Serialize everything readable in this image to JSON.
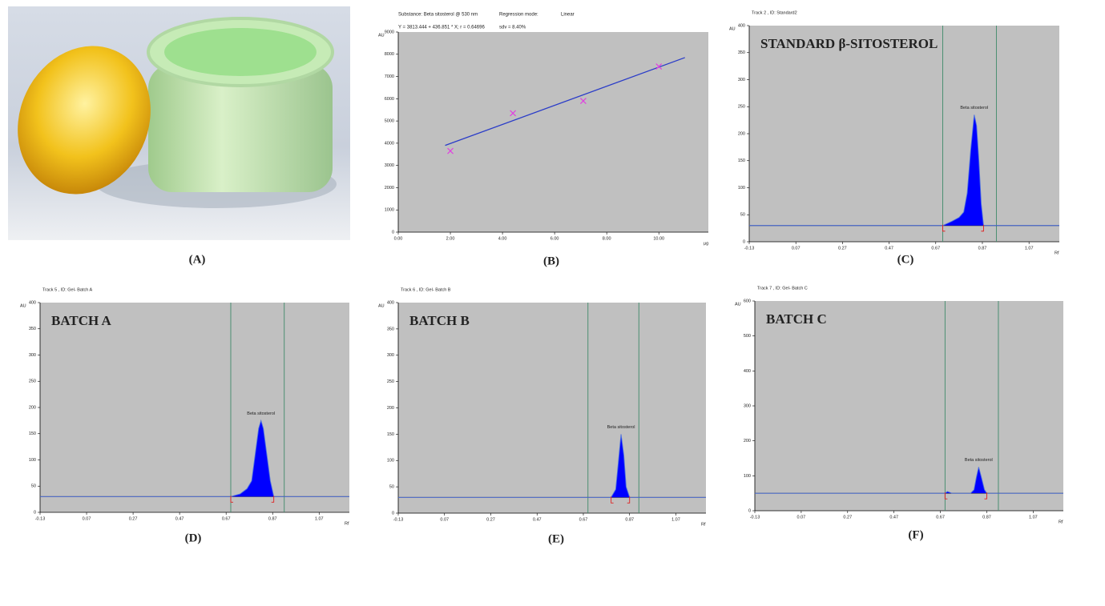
{
  "captions": [
    "(A)",
    "(B)",
    "(C)",
    "(D)",
    "(E)",
    "(F)"
  ],
  "chart_data": [
    {
      "type": "scatter",
      "header": [
        "Substance: Beta sitosterol @ 530 nm",
        "Regression mode:",
        "Linear",
        "Y = 3813.444 + 436.851 * X; r = 0.64696",
        "sdv = 8.40%"
      ],
      "ylabel": "AU",
      "xlabel": "µg",
      "xlim": [
        0,
        11.9
      ],
      "ylim": [
        0,
        9000
      ],
      "xticks": [
        {
          "value": 0,
          "label": "0.00"
        },
        {
          "value": 2,
          "label": "2.00"
        },
        {
          "value": 4,
          "label": "4.00"
        },
        {
          "value": 6,
          "label": "6.00"
        },
        {
          "value": 8,
          "label": "8.00"
        },
        {
          "value": 10,
          "label": "10.00"
        }
      ],
      "yticks": [
        0,
        1000,
        2000,
        3000,
        4000,
        5000,
        6000,
        7000,
        8000,
        9000
      ],
      "x": [
        2,
        4.4,
        7.1,
        10
      ],
      "values": [
        3650,
        5350,
        5900,
        7450
      ],
      "color": "#e040e0",
      "fit": {
        "x": [
          1.8,
          11
        ],
        "values": [
          3900,
          7850
        ],
        "color": "#2a3cc8"
      }
    },
    {
      "type": "line",
      "title": "Track  2 , ID: Standard2",
      "label": "STANDARD β-SITOSTEROL",
      "peak_label": "Beta sitosterol",
      "ylabel": "AU",
      "xlabel": "Rf",
      "xlim": [
        -0.13,
        1.2
      ],
      "ylim": [
        0,
        400
      ],
      "xticks": [
        -0.13,
        0.07,
        0.27,
        0.47,
        0.67,
        0.87,
        1.07
      ],
      "yticks": [
        0,
        50,
        100,
        150,
        200,
        250,
        300,
        350,
        400
      ],
      "baseline": 30,
      "markers": [
        0.7,
        0.93
      ],
      "color": "#0000ff",
      "x": [
        -0.13,
        0.7,
        0.74,
        0.77,
        0.79,
        0.805,
        0.82,
        0.835,
        0.845,
        0.855,
        0.865,
        0.875,
        0.95,
        1.2
      ],
      "values": [
        30,
        30,
        38,
        45,
        55,
        90,
        170,
        235,
        215,
        150,
        70,
        30,
        30,
        30
      ]
    },
    {
      "type": "line",
      "title": "Track  5 , ID: Gel- Batch A",
      "label": "BATCH A",
      "peak_label": "Beta sitosterol",
      "ylabel": "AU",
      "xlabel": "Rf",
      "xlim": [
        -0.13,
        1.2
      ],
      "ylim": [
        0,
        400
      ],
      "xticks": [
        -0.13,
        0.07,
        0.27,
        0.47,
        0.67,
        0.87,
        1.07
      ],
      "yticks": [
        0,
        50,
        100,
        150,
        200,
        250,
        300,
        350,
        400
      ],
      "baseline": 30,
      "markers": [
        0.69,
        0.92
      ],
      "color": "#0000ff",
      "x": [
        -0.13,
        0.69,
        0.73,
        0.76,
        0.78,
        0.795,
        0.81,
        0.82,
        0.83,
        0.845,
        0.86,
        0.875,
        0.95,
        1.2
      ],
      "values": [
        30,
        30,
        35,
        45,
        60,
        110,
        160,
        175,
        160,
        110,
        60,
        30,
        30,
        30
      ]
    },
    {
      "type": "line",
      "title": "Track  6 , ID: Gel- Batch B",
      "label": "BATCH B",
      "peak_label": "Beta sitosterol",
      "ylabel": "AU",
      "xlabel": "Rf",
      "xlim": [
        -0.13,
        1.2
      ],
      "ylim": [
        0,
        400
      ],
      "xticks": [
        -0.13,
        0.07,
        0.27,
        0.47,
        0.67,
        0.87,
        1.07
      ],
      "yticks": [
        0,
        50,
        100,
        150,
        200,
        250,
        300,
        350,
        400
      ],
      "baseline": 30,
      "markers": [
        0.69,
        0.91
      ],
      "color": "#0000ff",
      "x": [
        -0.13,
        0.69,
        0.79,
        0.81,
        0.82,
        0.833,
        0.845,
        0.855,
        0.87,
        0.95,
        1.2
      ],
      "values": [
        30,
        30,
        30,
        45,
        90,
        150,
        110,
        50,
        30,
        30,
        30
      ]
    },
    {
      "type": "line",
      "title": "Track  7 , ID: Gel- Batch C",
      "label": "BATCH C",
      "peak_label": "Beta sitosterol",
      "ylabel": "AU",
      "xlabel": "Rf",
      "xlim": [
        -0.13,
        1.2
      ],
      "ylim": [
        0,
        600
      ],
      "xticks": [
        -0.13,
        0.07,
        0.27,
        0.47,
        0.67,
        0.87,
        1.07
      ],
      "yticks": [
        0,
        100,
        200,
        300,
        400,
        500,
        600
      ],
      "baseline": 50,
      "markers": [
        0.69,
        0.92
      ],
      "color": "#0000ff",
      "x": [
        -0.13,
        0.69,
        0.7,
        0.72,
        0.8,
        0.815,
        0.825,
        0.835,
        0.845,
        0.86,
        0.87,
        0.95,
        1.2
      ],
      "values": [
        50,
        50,
        55,
        50,
        50,
        60,
        95,
        125,
        100,
        60,
        50,
        50,
        50
      ]
    }
  ]
}
